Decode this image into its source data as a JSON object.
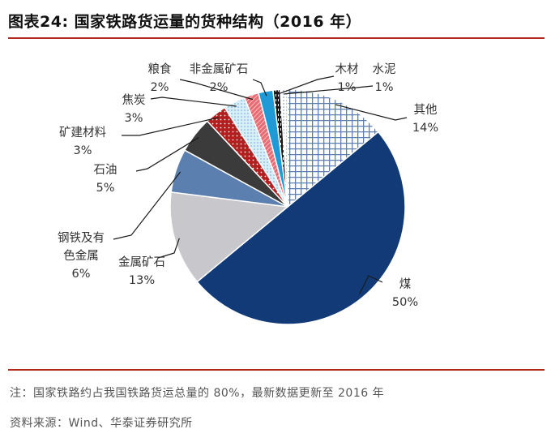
{
  "figure": {
    "title": "图表24:   国家铁路货运量的货种结构（2016 年）",
    "note": "注：国家铁路约占我国铁路货运总量的 80%，最新数据更新至 2016 年",
    "source": "资料来源：Wind、华泰证券研究所"
  },
  "chart_data": {
    "type": "pie",
    "title": "国家铁路货运量的货种结构（2016 年）",
    "unit": "%",
    "slices": [
      {
        "name": "煤",
        "label_lines": [
          "煤"
        ],
        "value_text": "50%",
        "value": 50,
        "color": "#123a76",
        "pattern": "none"
      },
      {
        "name": "金属矿石",
        "label_lines": [
          "金属矿石"
        ],
        "value_text": "13%",
        "value": 13,
        "color": "#c8c8cc",
        "pattern": "none"
      },
      {
        "name": "钢铁及有色金属",
        "label_lines": [
          "钢铁及有",
          "色金属"
        ],
        "value_text": "6%",
        "value": 6,
        "color": "#5b7fae",
        "pattern": "none"
      },
      {
        "name": "石油",
        "label_lines": [
          "石油"
        ],
        "value_text": "5%",
        "value": 5,
        "color": "#3b3b3b",
        "pattern": "none"
      },
      {
        "name": "矿建材料",
        "label_lines": [
          "矿建材料"
        ],
        "value_text": "3%",
        "value": 3,
        "color": "#b21f1f",
        "pattern": "dots-white"
      },
      {
        "name": "焦炭",
        "label_lines": [
          "焦炭"
        ],
        "value_text": "3%",
        "value": 3,
        "color": "#cfe8f7",
        "pattern": "dots-blue"
      },
      {
        "name": "粮食",
        "label_lines": [
          "粮食"
        ],
        "value_text": "2%",
        "value": 2,
        "color": "#e86a72",
        "pattern": "stripes-white"
      },
      {
        "name": "非金属矿石",
        "label_lines": [
          "非金属矿石"
        ],
        "value_text": "2%",
        "value": 2,
        "color": "#1f9ad6",
        "pattern": "none"
      },
      {
        "name": "木材",
        "label_lines": [
          "木材"
        ],
        "value_text": "1%",
        "value": 1,
        "color": "#1a1a1a",
        "pattern": "dash-white"
      },
      {
        "name": "水泥",
        "label_lines": [
          "水泥"
        ],
        "value_text": "1%",
        "value": 1,
        "color": "#ffffff",
        "pattern": "dots-gray"
      },
      {
        "name": "其他",
        "label_lines": [
          "其他"
        ],
        "value_text": "14%",
        "value": 14,
        "color": "#ffffff",
        "pattern": "grid-blue"
      }
    ]
  }
}
